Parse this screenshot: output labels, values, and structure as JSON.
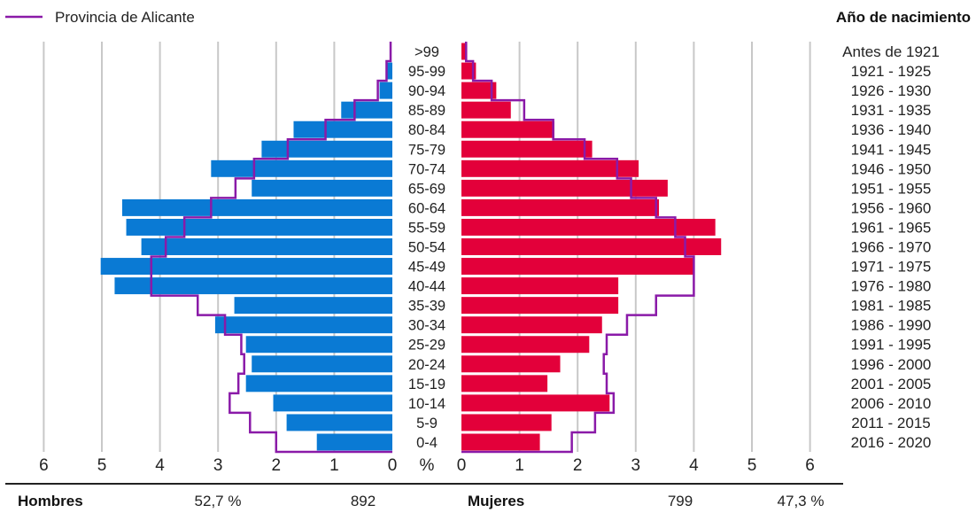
{
  "legend": {
    "line_label": "Provincia de Alicante"
  },
  "right_header": "Año de nacimiento",
  "x_unit_label": "%",
  "x_ticks": [
    "6",
    "5",
    "4",
    "3",
    "2",
    "1",
    "0",
    "0",
    "1",
    "2",
    "3",
    "4",
    "5",
    "6"
  ],
  "footer": {
    "men_label": "Hombres",
    "men_pct": "52,7 %",
    "men_count": "892",
    "women_label": "Mujeres",
    "women_count": "799",
    "women_pct": "47,3 %"
  },
  "colors": {
    "men": "#0a7ad4",
    "women": "#e3003a",
    "province_line": "#8a1aa8",
    "grid": "#c8c8c8"
  },
  "chart_data": {
    "type": "bar",
    "orientation": "horizontal-pyramid",
    "xlim": [
      0,
      6
    ],
    "grid": true,
    "legend_placement": "top-left",
    "age_groups": [
      ">99",
      "95-99",
      "90-94",
      "85-89",
      "80-84",
      "75-79",
      "70-74",
      "65-69",
      "60-64",
      "55-59",
      "50-54",
      "45-49",
      "40-44",
      "35-39",
      "30-34",
      "25-29",
      "20-24",
      "15-19",
      "10-14",
      "5-9",
      "0-4"
    ],
    "birth_years": [
      "Antes de 1921",
      "1921 - 1925",
      "1926 - 1930",
      "1931 - 1935",
      "1936 - 1940",
      "1941 - 1945",
      "1946 - 1950",
      "1951 - 1955",
      "1956 - 1960",
      "1961 - 1965",
      "1966 - 1970",
      "1971 - 1975",
      "1976 - 1980",
      "1981 - 1985",
      "1986 - 1990",
      "1991 - 1995",
      "1996 - 2000",
      "2001 - 2005",
      "2006 - 2010",
      "2011 - 2015",
      "2016 - 2020"
    ],
    "series": [
      {
        "name": "Hombres",
        "values": [
          0.0,
          0.1,
          0.22,
          0.88,
          1.7,
          2.25,
          3.12,
          2.42,
          4.65,
          4.58,
          4.32,
          5.02,
          4.78,
          2.72,
          3.05,
          2.52,
          2.42,
          2.52,
          2.05,
          1.82,
          1.3
        ]
      },
      {
        "name": "Mujeres",
        "values": [
          0.1,
          0.25,
          0.6,
          0.85,
          1.6,
          2.25,
          3.05,
          3.55,
          3.4,
          4.37,
          4.47,
          4.0,
          2.7,
          2.7,
          2.42,
          2.2,
          1.7,
          1.48,
          2.55,
          1.55,
          1.35
        ]
      },
      {
        "name": "Provincia de Alicante",
        "side": "Hombres",
        "values": [
          0.03,
          0.1,
          0.25,
          0.65,
          1.15,
          1.8,
          2.38,
          2.7,
          3.12,
          3.58,
          3.9,
          4.15,
          4.15,
          3.35,
          2.88,
          2.6,
          2.55,
          2.65,
          2.8,
          2.45,
          2.0
        ]
      },
      {
        "name": "Provincia de Alicante",
        "side": "Mujeres",
        "values": [
          0.08,
          0.2,
          0.52,
          1.08,
          1.58,
          2.12,
          2.68,
          2.92,
          3.35,
          3.68,
          3.85,
          4.0,
          4.0,
          3.35,
          2.85,
          2.5,
          2.45,
          2.5,
          2.62,
          2.3,
          1.9
        ]
      }
    ]
  }
}
